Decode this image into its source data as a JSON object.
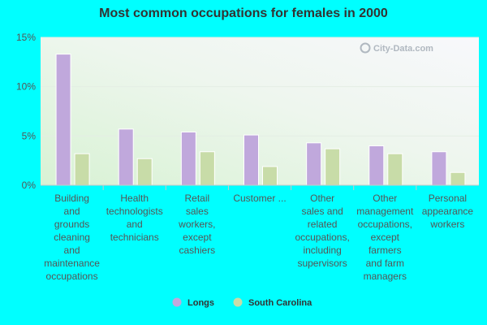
{
  "chart_data": {
    "type": "bar",
    "title": "Most common occupations for females in 2000",
    "categories": [
      [
        "Building",
        "and",
        "grounds",
        "cleaning",
        "and",
        "maintenance",
        "occupations"
      ],
      [
        "Health",
        "technologists",
        "and",
        "technicians"
      ],
      [
        "Retail",
        "sales",
        "workers,",
        "except",
        "cashiers"
      ],
      [
        "Customer ..."
      ],
      [
        "Other",
        "sales and",
        "related",
        "occupations,",
        "including",
        "supervisors"
      ],
      [
        "Other",
        "management",
        "occupations,",
        "except",
        "farmers",
        "and farm",
        "managers"
      ],
      [
        "Personal",
        "appearance",
        "workers"
      ]
    ],
    "series": [
      {
        "name": "Longs",
        "color": "#c0a8dc",
        "values": [
          13.3,
          5.7,
          5.4,
          5.1,
          4.3,
          4.0,
          3.4
        ]
      },
      {
        "name": "South Carolina",
        "color": "#c8dca8",
        "values": [
          3.2,
          2.7,
          3.4,
          1.9,
          3.7,
          3.2,
          1.3
        ]
      }
    ],
    "ylim": [
      0,
      15
    ],
    "yticks": [
      0,
      5,
      10,
      15
    ],
    "ytick_labels": [
      "0%",
      "5%",
      "10%",
      "15%"
    ],
    "grid": true,
    "legend_position": "bottom-center"
  },
  "watermark": "City-Data.com"
}
